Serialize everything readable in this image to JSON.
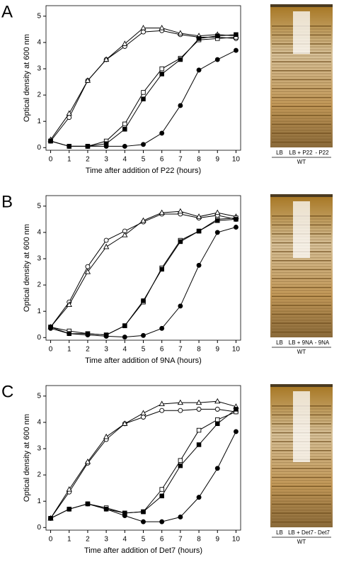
{
  "chart_data": [
    {
      "type": "line",
      "panel": "A",
      "xlabel": "Time after addition of P22 (hours)",
      "ylabel": "Optical density at 600 nm",
      "x": [
        0,
        1,
        2,
        3,
        4,
        5,
        6,
        7,
        8,
        9,
        10
      ],
      "xlim": [
        -0.25,
        10.25
      ],
      "xticks": [
        0,
        1,
        2,
        3,
        4,
        5,
        6,
        7,
        8,
        9,
        10
      ],
      "ylim": [
        -0.1,
        5.4
      ],
      "yticks": [
        0,
        1,
        2,
        3,
        4,
        5
      ],
      "series": [
        {
          "marker": "circle",
          "filled": false,
          "color": "#000000",
          "values": [
            0.25,
            1.15,
            2.55,
            3.35,
            3.85,
            4.4,
            4.45,
            4.3,
            4.2,
            4.2,
            4.15
          ]
        },
        {
          "marker": "triangle",
          "filled": false,
          "color": "#000000",
          "values": [
            0.3,
            1.3,
            2.55,
            3.35,
            3.95,
            4.55,
            4.55,
            4.35,
            4.25,
            4.3,
            4.25
          ]
        },
        {
          "marker": "square",
          "filled": false,
          "color": "#000000",
          "values": [
            0.25,
            0.05,
            0.05,
            0.25,
            0.9,
            2.1,
            3.0,
            3.4,
            4.1,
            4.15,
            4.2
          ]
        },
        {
          "marker": "square",
          "filled": true,
          "color": "#000000",
          "values": [
            0.25,
            0.05,
            0.05,
            0.15,
            0.7,
            1.85,
            2.8,
            3.35,
            4.15,
            4.25,
            4.3
          ]
        },
        {
          "marker": "circle",
          "filled": true,
          "color": "#000000",
          "values": [
            0.25,
            0.05,
            0.05,
            0.05,
            0.05,
            0.12,
            0.55,
            1.6,
            2.95,
            3.35,
            3.7
          ]
        }
      ],
      "gel_labels": [
        "LB",
        "LB + P22",
        "- P22"
      ],
      "gel_group": "WT"
    },
    {
      "type": "line",
      "panel": "B",
      "xlabel": "Time after addition of 9NA (hours)",
      "ylabel": "Optical density at 600 nm",
      "x": [
        0,
        1,
        2,
        3,
        4,
        5,
        6,
        7,
        8,
        9,
        10
      ],
      "xlim": [
        -0.25,
        10.25
      ],
      "xticks": [
        0,
        1,
        2,
        3,
        4,
        5,
        6,
        7,
        8,
        9,
        10
      ],
      "ylim": [
        -0.1,
        5.4
      ],
      "yticks": [
        0,
        1,
        2,
        3,
        4,
        5
      ],
      "series": [
        {
          "marker": "circle",
          "filled": false,
          "color": "#000000",
          "values": [
            0.4,
            1.35,
            2.7,
            3.7,
            4.05,
            4.4,
            4.7,
            4.7,
            4.55,
            4.65,
            4.5
          ]
        },
        {
          "marker": "triangle",
          "filled": false,
          "color": "#000000",
          "values": [
            0.4,
            1.25,
            2.5,
            3.45,
            3.9,
            4.45,
            4.75,
            4.8,
            4.6,
            4.75,
            4.6
          ]
        },
        {
          "marker": "square",
          "filled": false,
          "color": "#000000",
          "values": [
            0.4,
            0.25,
            0.15,
            0.1,
            0.45,
            1.35,
            2.65,
            3.7,
            4.05,
            4.5,
            4.55
          ]
        },
        {
          "marker": "square",
          "filled": true,
          "color": "#000000",
          "values": [
            0.4,
            0.15,
            0.15,
            0.1,
            0.45,
            1.4,
            2.6,
            3.65,
            4.05,
            4.45,
            4.5
          ]
        },
        {
          "marker": "circle",
          "filled": true,
          "color": "#000000",
          "values": [
            0.35,
            0.15,
            0.1,
            0.05,
            0.02,
            0.08,
            0.35,
            1.2,
            2.75,
            4.0,
            4.2
          ]
        }
      ],
      "gel_labels": [
        "LB",
        "LB + 9NA",
        "- 9NA"
      ],
      "gel_group": "WT"
    },
    {
      "type": "line",
      "panel": "C",
      "xlabel": "Time after addition of Det7 (hours)",
      "ylabel": "Optical density at 600 nm",
      "x": [
        0,
        1,
        2,
        3,
        4,
        5,
        6,
        7,
        8,
        9,
        10
      ],
      "xlim": [
        -0.25,
        10.25
      ],
      "xticks": [
        0,
        1,
        2,
        3,
        4,
        5,
        6,
        7,
        8,
        9,
        10
      ],
      "ylim": [
        -0.1,
        5.4
      ],
      "yticks": [
        0,
        1,
        2,
        3,
        4,
        5
      ],
      "series": [
        {
          "marker": "circle",
          "filled": false,
          "color": "#000000",
          "values": [
            0.35,
            1.35,
            2.45,
            3.35,
            3.95,
            4.2,
            4.45,
            4.45,
            4.5,
            4.5,
            4.4
          ]
        },
        {
          "marker": "triangle",
          "filled": false,
          "color": "#000000",
          "values": [
            0.35,
            1.45,
            2.5,
            3.45,
            3.95,
            4.35,
            4.7,
            4.75,
            4.75,
            4.8,
            4.6
          ]
        },
        {
          "marker": "square",
          "filled": false,
          "color": "#000000",
          "values": [
            0.35,
            0.7,
            0.9,
            0.75,
            0.55,
            0.6,
            1.45,
            2.55,
            3.7,
            4.1,
            4.4
          ]
        },
        {
          "marker": "square",
          "filled": true,
          "color": "#000000",
          "values": [
            0.35,
            0.7,
            0.9,
            0.7,
            0.55,
            0.6,
            1.2,
            2.35,
            3.15,
            3.95,
            4.5
          ]
        },
        {
          "marker": "circle",
          "filled": true,
          "color": "#000000",
          "values": [
            0.35,
            0.7,
            0.9,
            0.7,
            0.45,
            0.22,
            0.22,
            0.4,
            1.15,
            2.25,
            3.65
          ]
        }
      ],
      "gel_labels": [
        "LB",
        "LB + Det7",
        "- Det7"
      ],
      "gel_group": "WT"
    }
  ]
}
